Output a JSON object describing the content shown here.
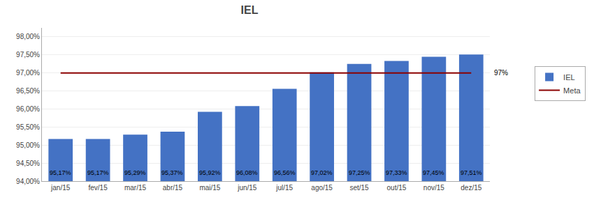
{
  "chart_data": {
    "type": "bar",
    "title": "IEL",
    "categories": [
      "jan/15",
      "fev/15",
      "mar/15",
      "abr/15",
      "mai/15",
      "jun/15",
      "jul/15",
      "ago/15",
      "set/15",
      "out/15",
      "nov/15",
      "dez/15"
    ],
    "series": [
      {
        "name": "IEL",
        "type": "bar",
        "color": "#4472C4",
        "values": [
          95.17,
          95.17,
          95.29,
          95.37,
          95.92,
          96.08,
          96.56,
          97.02,
          97.25,
          97.33,
          97.45,
          97.51
        ],
        "value_labels": [
          "95,17%",
          "95,17%",
          "95,29%",
          "95,37%",
          "95,92%",
          "96,08%",
          "96,56%",
          "97,02%",
          "97,25%",
          "97,33%",
          "97,45%",
          "97,51%"
        ]
      },
      {
        "name": "Meta",
        "type": "line",
        "color": "#8B0000",
        "values": [
          97.0,
          97.0,
          97.0,
          97.0,
          97.0,
          97.0,
          97.0,
          97.0,
          97.0,
          97.0,
          97.0,
          97.0
        ]
      }
    ],
    "annotations": [
      {
        "text": "97%",
        "y": 97.0
      }
    ],
    "ylim": [
      94.0,
      98.25
    ],
    "yticks": [
      {
        "value": 94.0,
        "label": "94,00%"
      },
      {
        "value": 94.5,
        "label": "94,50%"
      },
      {
        "value": 95.0,
        "label": "95,00%"
      },
      {
        "value": 95.5,
        "label": "95,50%"
      },
      {
        "value": 96.0,
        "label": "96,00%"
      },
      {
        "value": 96.5,
        "label": "96,50%"
      },
      {
        "value": 97.0,
        "label": "97,00%"
      },
      {
        "value": 97.5,
        "label": "97,50%"
      },
      {
        "value": 98.0,
        "label": "98,00%"
      }
    ],
    "data_labels": true,
    "grid": true,
    "legend": "right"
  }
}
